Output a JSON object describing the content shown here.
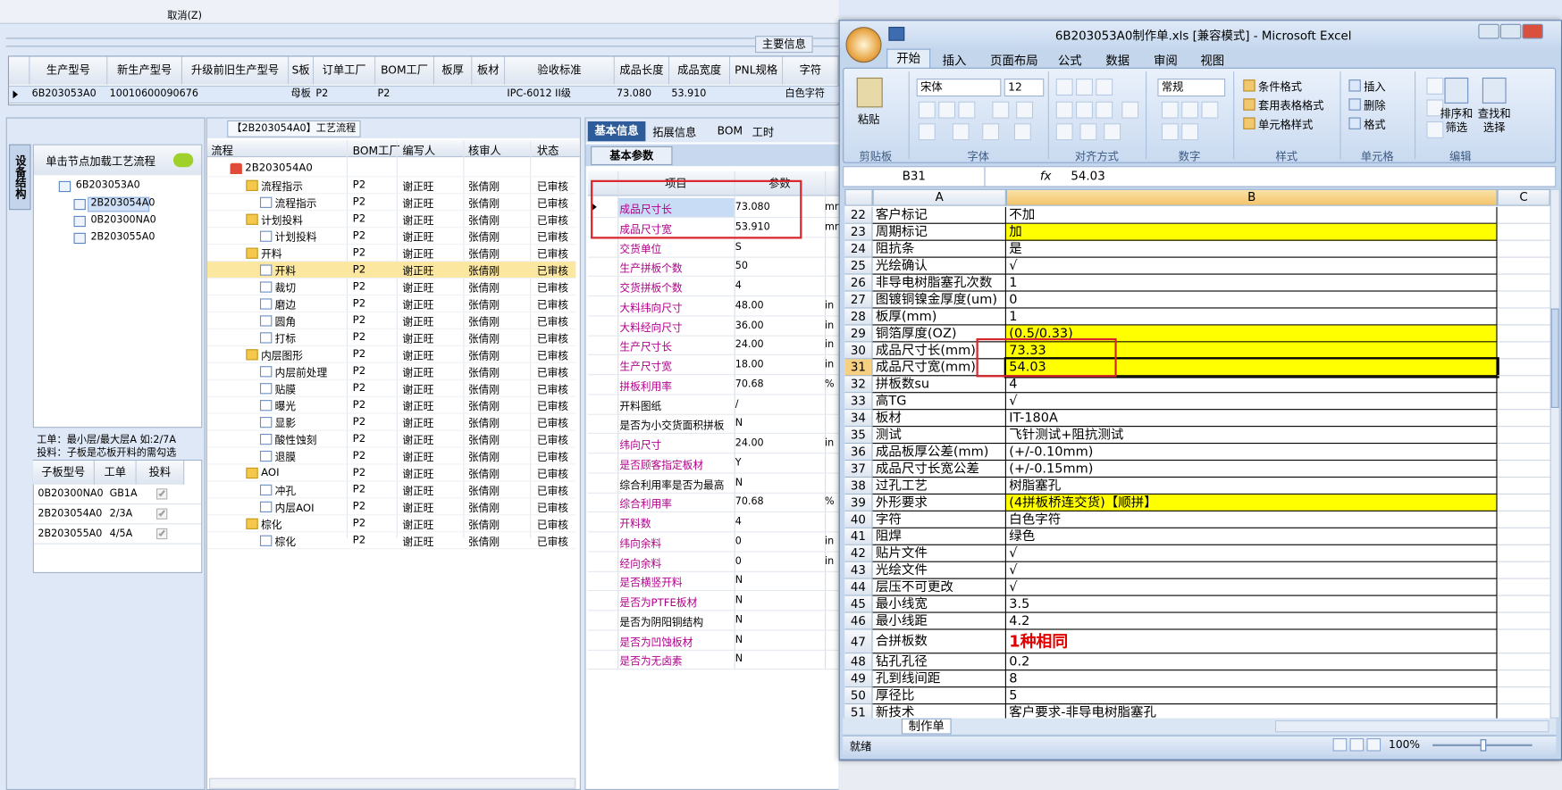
{
  "app": {
    "menu_cancel": "取消(Z)",
    "main_tab": "主要信息",
    "main_columns": [
      "生产型号",
      "新生产型号",
      "升级前旧生产型号",
      "S板",
      "订单工厂",
      "BOM工厂",
      "板厚",
      "板材",
      "验收标准",
      "成品长度",
      "成品宽度",
      "PNL规格",
      "字符"
    ],
    "main_row": [
      "6B203053A0",
      "10010600090676",
      null,
      "母板",
      "P2",
      "P2",
      null,
      null,
      "IPC-6012 II级",
      "73.080",
      "53.910",
      null,
      "白色字符"
    ],
    "left": {
      "vtab": "设备结构",
      "hint": "单击节点加载工艺流程",
      "tree_root": "6B203053A0",
      "tree_children": [
        "2B203054A0",
        "0B20300NA0",
        "2B203055A0"
      ],
      "note1": "工单：最小层/最大层A 如:2/7A",
      "note2": "投料：子板是芯板开料的需勾选",
      "table_columns": [
        "子板型号",
        "工单",
        "投料"
      ],
      "table_rows": [
        [
          "0B20300NA0",
          "GB1A",
          true
        ],
        [
          "2B203054A0",
          "2/3A",
          true
        ],
        [
          "2B203055A0",
          "4/5A",
          true
        ]
      ]
    },
    "flow": {
      "title": "【2B203054A0】工艺流程",
      "columns": [
        "流程",
        "BOM工厂",
        "编写人",
        "核审人",
        "状态"
      ],
      "root": "2B203054A0",
      "groups": [
        {
          "row": [
            "流程指示",
            "P2",
            "谢正旺",
            "张倩刚",
            "已审核"
          ],
          "children": [
            [
              "流程指示",
              "P2",
              "谢正旺",
              "张倩刚",
              "已审核"
            ]
          ]
        },
        {
          "row": [
            "计划投料",
            "P2",
            "谢正旺",
            "张倩刚",
            "已审核"
          ],
          "children": [
            [
              "计划投料",
              "P2",
              "谢正旺",
              "张倩刚",
              "已审核"
            ]
          ]
        },
        {
          "row": [
            "开料",
            "P2",
            "谢正旺",
            "张倩刚",
            "已审核"
          ],
          "children": [
            [
              "开料",
              "P2",
              "谢正旺",
              "张倩刚",
              "已审核"
            ],
            [
              "裁切",
              "P2",
              "谢正旺",
              "张倩刚",
              "已审核"
            ],
            [
              "磨边",
              "P2",
              "谢正旺",
              "张倩刚",
              "已审核"
            ],
            [
              "圆角",
              "P2",
              "谢正旺",
              "张倩刚",
              "已审核"
            ],
            [
              "打标",
              "P2",
              "谢正旺",
              "张倩刚",
              "已审核"
            ]
          ]
        },
        {
          "row": [
            "内层图形",
            "P2",
            "谢正旺",
            "张倩刚",
            "已审核"
          ],
          "children": [
            [
              "内层前处理",
              "P2",
              "谢正旺",
              "张倩刚",
              "已审核"
            ],
            [
              "贴膜",
              "P2",
              "谢正旺",
              "张倩刚",
              "已审核"
            ],
            [
              "曝光",
              "P2",
              "谢正旺",
              "张倩刚",
              "已审核"
            ],
            [
              "显影",
              "P2",
              "谢正旺",
              "张倩刚",
              "已审核"
            ],
            [
              "酸性蚀刻",
              "P2",
              "谢正旺",
              "张倩刚",
              "已审核"
            ],
            [
              "退膜",
              "P2",
              "谢正旺",
              "张倩刚",
              "已审核"
            ]
          ]
        },
        {
          "row": [
            "AOI",
            "P2",
            "谢正旺",
            "张倩刚",
            "已审核"
          ],
          "children": [
            [
              "冲孔",
              "P2",
              "谢正旺",
              "张倩刚",
              "已审核"
            ],
            [
              "内层AOI",
              "P2",
              "谢正旺",
              "张倩刚",
              "已审核"
            ]
          ]
        },
        {
          "row": [
            "棕化",
            "P2",
            "谢正旺",
            "张倩刚",
            "已审核"
          ],
          "children": [
            [
              "棕化",
              "P2",
              "谢正旺",
              "张倩刚",
              "已审核"
            ]
          ]
        }
      ]
    },
    "params": {
      "tabs": [
        "基本信息",
        "拓展信息",
        "BOM",
        "工时"
      ],
      "section": "基本参数",
      "columns": [
        "项目",
        "参数"
      ],
      "rows": [
        {
          "item": "成品尺寸长",
          "value": "73.080",
          "unit": "mm",
          "color": "#b0008a"
        },
        {
          "item": "成品尺寸宽",
          "value": "53.910",
          "unit": "mm",
          "color": "#b0008a"
        },
        {
          "item": "交货单位",
          "value": "S",
          "unit": null,
          "color": "#b0008a"
        },
        {
          "item": "生产拼板个数",
          "value": "50",
          "unit": null,
          "color": "#b0008a"
        },
        {
          "item": "交货拼板个数",
          "value": "4",
          "unit": null,
          "color": "#b0008a"
        },
        {
          "item": "大料纬向尺寸",
          "value": "48.00",
          "unit": "in",
          "color": "#b0008a"
        },
        {
          "item": "大料经向尺寸",
          "value": "36.00",
          "unit": "in",
          "color": "#b0008a"
        },
        {
          "item": "生产尺寸长",
          "value": "24.00",
          "unit": "in",
          "color": "#b0008a"
        },
        {
          "item": "生产尺寸宽",
          "value": "18.00",
          "unit": "in",
          "color": "#b0008a"
        },
        {
          "item": "拼板利用率",
          "value": "70.68",
          "unit": "%",
          "color": "#b0008a"
        },
        {
          "item": "开料图纸",
          "value": "/",
          "unit": null,
          "color": "#000000"
        },
        {
          "item": "是否为小交货面积拼板",
          "value": "N",
          "unit": null,
          "color": "#000000"
        },
        {
          "item": "纬向尺寸",
          "value": "24.00",
          "unit": "in",
          "color": "#b0008a"
        },
        {
          "item": "是否顾客指定板材",
          "value": "Y",
          "unit": null,
          "color": "#b0008a"
        },
        {
          "item": "综合利用率是否为最高",
          "value": "N",
          "unit": null,
          "color": "#000000"
        },
        {
          "item": "综合利用率",
          "value": "70.68",
          "unit": "%",
          "color": "#b0008a"
        },
        {
          "item": "开料数",
          "value": "4",
          "unit": null,
          "color": "#b0008a"
        },
        {
          "item": "纬向余料",
          "value": "0",
          "unit": "in",
          "color": "#b0008a"
        },
        {
          "item": "经向余料",
          "value": "0",
          "unit": "in",
          "color": "#b0008a"
        },
        {
          "item": "是否横竖开料",
          "value": "N",
          "unit": null,
          "color": "#b0008a"
        },
        {
          "item": "是否为PTFE板材",
          "value": "N",
          "unit": null,
          "color": "#b0008a"
        },
        {
          "item": "是否为阴阳铜结构",
          "value": "N",
          "unit": null,
          "color": "#000000"
        },
        {
          "item": "是否为凹蚀板材",
          "value": "N",
          "unit": null,
          "color": "#b0008a"
        },
        {
          "item": "是否为无卤素",
          "value": "N",
          "unit": null,
          "color": "#b0008a"
        }
      ]
    }
  },
  "excel": {
    "title": "6B203053A0制作单.xls [兼容模式] - Microsoft Excel",
    "tabs": [
      "开始",
      "插入",
      "页面布局",
      "公式",
      "数据",
      "审阅",
      "视图"
    ],
    "ribbon": {
      "paste": "粘贴",
      "font": "宋体",
      "size": "12",
      "number_format": "常规",
      "styles": [
        "条件格式",
        "套用表格格式",
        "单元格样式"
      ],
      "cells": [
        "插入",
        "删除",
        "格式"
      ],
      "editing": [
        "排序和筛选",
        "查找和选择"
      ],
      "groups": [
        "剪贴板",
        "字体",
        "对齐方式",
        "数字",
        "样式",
        "单元格",
        "编辑"
      ]
    },
    "name_box": "B31",
    "fx_label": "fx",
    "formula": "54.03",
    "columns": [
      "A",
      "B",
      "C"
    ],
    "rows": [
      {
        "n": 22,
        "a": "客户标记",
        "b": "不加",
        "fill": null
      },
      {
        "n": 23,
        "a": "周期标记",
        "b": "加",
        "fill": "#ffff00"
      },
      {
        "n": 24,
        "a": "阻抗条",
        "b": "是",
        "fill": null
      },
      {
        "n": 25,
        "a": "光绘确认",
        "b": "√",
        "fill": null
      },
      {
        "n": 26,
        "a": "非导电树脂塞孔次数",
        "b": "1",
        "fill": null
      },
      {
        "n": 27,
        "a": "图镀铜镍金厚度(um)",
        "b": "0",
        "fill": null
      },
      {
        "n": 28,
        "a": "板厚(mm)",
        "b": "1",
        "fill": null
      },
      {
        "n": 29,
        "a": "铜箔厚度(OZ)",
        "b": "(0.5/0.33)",
        "fill": "#ffff00"
      },
      {
        "n": 30,
        "a": "成品尺寸长(mm)",
        "b": "73.33",
        "fill": "#ffff00"
      },
      {
        "n": 31,
        "a": "成品尺寸宽(mm)",
        "b": "54.03",
        "fill": "#ffff00"
      },
      {
        "n": 32,
        "a": "拼板数su",
        "b": "4",
        "fill": null
      },
      {
        "n": 33,
        "a": "高TG",
        "b": "√",
        "fill": null
      },
      {
        "n": 34,
        "a": "板材",
        "b": "IT-180A",
        "fill": null
      },
      {
        "n": 35,
        "a": "测试",
        "b": "飞针测试+阻抗测试",
        "fill": null
      },
      {
        "n": 36,
        "a": "成品板厚公差(mm)",
        "b": "(+/-0.10mm)",
        "fill": null
      },
      {
        "n": 37,
        "a": "成品尺寸长宽公差",
        "b": "(+/-0.15mm)",
        "fill": null
      },
      {
        "n": 38,
        "a": "过孔工艺",
        "b": "树脂塞孔",
        "fill": null
      },
      {
        "n": 39,
        "a": "外形要求",
        "b": "(4拼板桥连交货)【顺拼】",
        "fill": "#ffff00"
      },
      {
        "n": 40,
        "a": "字符",
        "b": "白色字符",
        "fill": null
      },
      {
        "n": 41,
        "a": "阻焊",
        "b": "绿色",
        "fill": null
      },
      {
        "n": 42,
        "a": "贴片文件",
        "b": "√",
        "fill": null
      },
      {
        "n": 43,
        "a": "光绘文件",
        "b": "√",
        "fill": null
      },
      {
        "n": 44,
        "a": "层压不可更改",
        "b": "√",
        "fill": null
      },
      {
        "n": 45,
        "a": "最小线宽",
        "b": "3.5",
        "fill": null
      },
      {
        "n": 46,
        "a": "最小线距",
        "b": "4.2",
        "fill": null
      },
      {
        "n": 47,
        "a": "合拼板数",
        "b": "1种相同",
        "fill": null,
        "b_color": "#e00000"
      },
      {
        "n": 48,
        "a": "钻孔孔径",
        "b": "0.2",
        "fill": null
      },
      {
        "n": 49,
        "a": "孔到线间距",
        "b": "8",
        "fill": null
      },
      {
        "n": 50,
        "a": "厚径比",
        "b": "5",
        "fill": null
      },
      {
        "n": 51,
        "a": "新技术",
        "b": "客户要求-非导电树脂塞孔",
        "fill": null
      }
    ],
    "sheet_tab": "制作单",
    "status": "就绪",
    "zoom": "100%"
  }
}
